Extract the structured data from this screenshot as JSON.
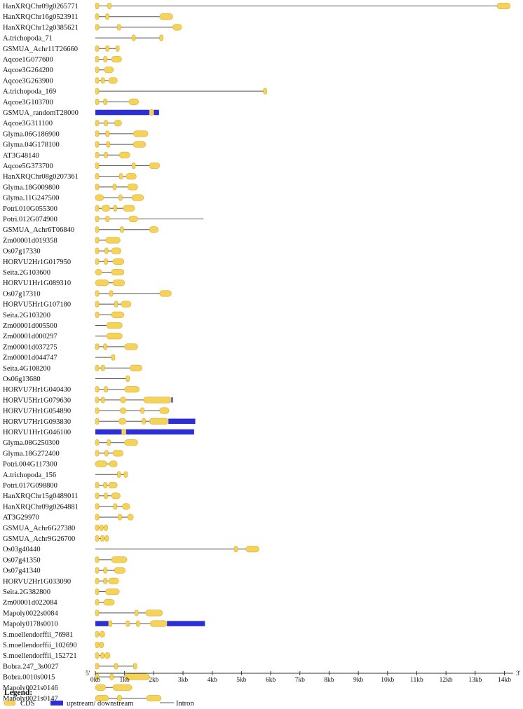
{
  "chart_data": {
    "type": "gene-structure",
    "x_unit": "kb",
    "xlim": [
      0,
      14.3
    ],
    "end_labels": {
      "left": "5'",
      "right": "3'"
    },
    "ticks": [
      "0kb",
      "1kb",
      "2kb",
      "3kb",
      "4kb",
      "5kb",
      "6kb",
      "7kb",
      "8kb",
      "9kb",
      "10kb",
      "11kb",
      "12kb",
      "13kb",
      "14kb"
    ],
    "tick_values": [
      0,
      1,
      2,
      3,
      4,
      5,
      6,
      7,
      8,
      9,
      10,
      11,
      12,
      13,
      14
    ],
    "colors": {
      "cds": "#f5d35a",
      "cds_edge": "#d9ae2e",
      "utr": "#2e2ed6",
      "intron": "#555555"
    },
    "legend": {
      "title": "Legend:",
      "items": [
        {
          "key": "cds",
          "label": "CDS"
        },
        {
          "key": "utr",
          "label": "upstream/ downstream"
        },
        {
          "key": "intron",
          "label": "Intron"
        }
      ]
    },
    "genes": [
      {
        "name": "HanXRQChr09g0265771",
        "length": 14.2,
        "cds": [
          [
            0,
            0.12
          ],
          [
            0.42,
            0.5
          ],
          [
            13.75,
            14.2
          ]
        ],
        "utr": []
      },
      {
        "name": "HanXRQChr16g0523911",
        "length": 2.65,
        "cds": [
          [
            0,
            0.12
          ],
          [
            0.35,
            0.43
          ],
          [
            2.2,
            2.65
          ]
        ],
        "utr": []
      },
      {
        "name": "HanXRQChr12g0385621",
        "length": 2.95,
        "cds": [
          [
            0,
            0.1
          ],
          [
            0.75,
            0.85
          ],
          [
            2.65,
            2.95
          ]
        ],
        "utr": []
      },
      {
        "name": "A.trichopoda_71",
        "length": 2.3,
        "cds": [
          [
            1.25,
            1.35
          ],
          [
            2.2,
            2.3
          ]
        ],
        "utr": []
      },
      {
        "name": "GSMUA_Achr11T26660",
        "length": 0.8,
        "cds": [
          [
            0,
            0.1
          ],
          [
            0.35,
            0.42
          ],
          [
            0.7,
            0.8
          ]
        ],
        "utr": []
      },
      {
        "name": "Aqcoe1G077600",
        "length": 0.9,
        "cds": [
          [
            0,
            0.12
          ],
          [
            0.28,
            0.38
          ],
          [
            0.55,
            0.9
          ]
        ],
        "utr": []
      },
      {
        "name": "Aqcoe3G264200",
        "length": 0.62,
        "cds": [
          [
            0,
            0.08
          ],
          [
            0.3,
            0.62
          ]
        ],
        "utr": []
      },
      {
        "name": "Aqcoe3G263900",
        "length": 0.75,
        "cds": [
          [
            0,
            0.12
          ],
          [
            0.2,
            0.3
          ],
          [
            0.45,
            0.75
          ]
        ],
        "utr": []
      },
      {
        "name": "A.trichopoda_169",
        "length": 5.85,
        "cds": [
          [
            0,
            0.05
          ],
          [
            5.75,
            5.85
          ]
        ],
        "utr": []
      },
      {
        "name": "Aqcoe3G103700",
        "length": 1.48,
        "cds": [
          [
            0,
            0.1
          ],
          [
            0.28,
            0.38
          ],
          [
            1.15,
            1.48
          ]
        ],
        "utr": []
      },
      {
        "name": "GSMUA_randomT28000",
        "length": 2.18,
        "cds": [
          [
            1.85,
            2.0
          ]
        ],
        "utr": [
          [
            0,
            1.85
          ],
          [
            2.0,
            2.18
          ]
        ]
      },
      {
        "name": "Aqcoe3G311100",
        "length": 0.9,
        "cds": [
          [
            0,
            0.1
          ],
          [
            0.3,
            0.4
          ],
          [
            0.65,
            0.9
          ]
        ],
        "utr": []
      },
      {
        "name": "Glyma.06G186900",
        "length": 1.8,
        "cds": [
          [
            0,
            0.12
          ],
          [
            0.35,
            0.48
          ],
          [
            1.3,
            1.8
          ]
        ],
        "utr": []
      },
      {
        "name": "Glyma.04G178100",
        "length": 1.72,
        "cds": [
          [
            0,
            0.12
          ],
          [
            0.38,
            0.5
          ],
          [
            1.3,
            1.72
          ]
        ],
        "utr": []
      },
      {
        "name": "AT3G48140",
        "length": 1.18,
        "cds": [
          [
            0,
            0.1
          ],
          [
            0.3,
            0.42
          ],
          [
            0.82,
            1.18
          ]
        ],
        "utr": []
      },
      {
        "name": "Aqcoe5G373700",
        "length": 2.2,
        "cds": [
          [
            0,
            0.12
          ],
          [
            1.25,
            1.35
          ],
          [
            1.85,
            2.2
          ]
        ],
        "utr": []
      },
      {
        "name": "HanXRQChr08g0207361",
        "length": 1.4,
        "cds": [
          [
            0,
            0.1
          ],
          [
            0.82,
            0.92
          ],
          [
            1.05,
            1.4
          ]
        ],
        "utr": []
      },
      {
        "name": "Glyma.18G009800",
        "length": 1.45,
        "cds": [
          [
            0,
            0.12
          ],
          [
            0.6,
            0.7
          ],
          [
            1.1,
            1.45
          ]
        ],
        "utr": []
      },
      {
        "name": "Glyma.11G247500",
        "length": 1.65,
        "cds": [
          [
            0,
            0.28
          ],
          [
            0.8,
            0.9
          ],
          [
            1.25,
            1.65
          ]
        ],
        "utr": []
      },
      {
        "name": "Potri.010G055300",
        "length": 1.35,
        "cds": [
          [
            0,
            0.12
          ],
          [
            0.22,
            0.5
          ],
          [
            0.62,
            0.72
          ],
          [
            0.95,
            1.35
          ]
        ],
        "utr": []
      },
      {
        "name": "Potri.012G074900",
        "length": 3.7,
        "cds": [
          [
            0,
            0.12
          ],
          [
            0.35,
            0.48
          ],
          [
            1.15,
            1.45
          ]
        ],
        "utr": []
      },
      {
        "name": "GSMUA_Achr6T06840",
        "length": 2.15,
        "cds": [
          [
            0,
            0.12
          ],
          [
            0.85,
            0.92
          ],
          [
            1.85,
            2.15
          ]
        ],
        "utr": []
      },
      {
        "name": "Zm00001d019358",
        "length": 0.85,
        "cds": [
          [
            0,
            0.12
          ],
          [
            0.35,
            0.85
          ]
        ],
        "utr": []
      },
      {
        "name": "Os07g17330",
        "length": 0.88,
        "cds": [
          [
            0,
            0.12
          ],
          [
            0.32,
            0.42
          ],
          [
            0.55,
            0.88
          ]
        ],
        "utr": []
      },
      {
        "name": "HORVU2Hr1G017950",
        "length": 0.98,
        "cds": [
          [
            0,
            0.1
          ],
          [
            0.3,
            0.4
          ],
          [
            0.6,
            0.98
          ]
        ],
        "utr": []
      },
      {
        "name": "Seita.2G103600",
        "length": 0.98,
        "cds": [
          [
            0,
            0.22
          ],
          [
            0.55,
            0.98
          ]
        ],
        "utr": []
      },
      {
        "name": "HORVU1Hr1G089310",
        "length": 1.0,
        "cds": [
          [
            0,
            0.45
          ],
          [
            0.6,
            1.0
          ]
        ],
        "utr": []
      },
      {
        "name": "Os07g17310",
        "length": 2.6,
        "cds": [
          [
            0,
            0.05
          ],
          [
            0.48,
            0.55
          ],
          [
            2.2,
            2.6
          ]
        ],
        "utr": []
      },
      {
        "name": "HORVU5Hr1G107180",
        "length": 1.22,
        "cds": [
          [
            0,
            0.08
          ],
          [
            0.65,
            0.75
          ],
          [
            0.88,
            1.22
          ]
        ],
        "utr": []
      },
      {
        "name": "Seita.2G103200",
        "length": 0.98,
        "cds": [
          [
            0,
            0.12
          ],
          [
            0.55,
            0.98
          ]
        ],
        "utr": []
      },
      {
        "name": "Zm00001d005500",
        "length": 0.92,
        "cds": [
          [
            0.38,
            0.92
          ]
        ],
        "utr": []
      },
      {
        "name": "Zm00001d000297",
        "length": 0.92,
        "cds": [
          [
            0.38,
            0.92
          ]
        ],
        "utr": []
      },
      {
        "name": "Zm00001d037275",
        "length": 1.45,
        "cds": [
          [
            0,
            0.12
          ],
          [
            0.28,
            0.38
          ],
          [
            1.0,
            1.45
          ]
        ],
        "utr": []
      },
      {
        "name": "Zm00001d044747",
        "length": 0.65,
        "cds": [
          [
            0.55,
            0.65
          ]
        ],
        "utr": []
      },
      {
        "name": "Seita.4G108200",
        "length": 1.6,
        "cds": [
          [
            0,
            0.12
          ],
          [
            0.2,
            0.3
          ],
          [
            1.18,
            1.6
          ]
        ],
        "utr": []
      },
      {
        "name": "Os06g13680",
        "length": 1.15,
        "cds": [
          [
            1.05,
            1.15
          ]
        ],
        "utr": []
      },
      {
        "name": "HORVU7Hr1G040430",
        "length": 1.5,
        "cds": [
          [
            0,
            0.12
          ],
          [
            0.3,
            0.38
          ],
          [
            1.0,
            1.5
          ]
        ],
        "utr": []
      },
      {
        "name": "HORVU5Hr1G079630",
        "length": 2.65,
        "cds": [
          [
            0,
            0.12
          ],
          [
            0.2,
            0.3
          ],
          [
            0.85,
            1.05
          ],
          [
            1.65,
            2.6
          ]
        ],
        "utr": [
          [
            2.6,
            2.65
          ]
        ]
      },
      {
        "name": "HORVU7Hr1G054890",
        "length": 2.52,
        "cds": [
          [
            0,
            0.12
          ],
          [
            0.85,
            1.05
          ],
          [
            1.55,
            1.62
          ],
          [
            2.2,
            2.52
          ]
        ],
        "utr": []
      },
      {
        "name": "HORVU7Hr1G093830",
        "length": 3.42,
        "cds": [
          [
            0,
            0.12
          ],
          [
            0.8,
            1.05
          ],
          [
            1.6,
            1.68
          ],
          [
            2.5,
            2.5
          ]
        ],
        "cds_extra": [
          [
            1.85,
            2.5
          ]
        ],
        "utr": [
          [
            2.5,
            3.42
          ]
        ]
      },
      {
        "name": "HORVU1Hr1G046100",
        "length": 3.38,
        "cds": [
          [
            0.9,
            1.05
          ]
        ],
        "utr": [
          [
            0,
            0.9
          ],
          [
            1.05,
            3.38
          ]
        ]
      },
      {
        "name": "Glyma.08G250300",
        "length": 1.45,
        "cds": [
          [
            0,
            0.12
          ],
          [
            0.4,
            0.5
          ],
          [
            1.0,
            1.45
          ]
        ],
        "utr": []
      },
      {
        "name": "Glyma.18G272400",
        "length": 0.95,
        "cds": [
          [
            0,
            0.12
          ],
          [
            0.32,
            0.42
          ],
          [
            0.6,
            0.95
          ]
        ],
        "utr": []
      },
      {
        "name": "Potri.004G117300",
        "length": 0.75,
        "cds": [
          [
            0,
            0.4
          ],
          [
            0.48,
            0.75
          ]
        ],
        "utr": []
      },
      {
        "name": "A.trichopoda_156",
        "length": 1.08,
        "cds": [
          [
            0.75,
            0.82
          ],
          [
            0.98,
            1.08
          ]
        ],
        "utr": []
      },
      {
        "name": "Potri.017G098800",
        "length": 0.75,
        "cds": [
          [
            0,
            0.12
          ],
          [
            0.28,
            0.38
          ],
          [
            0.45,
            0.75
          ]
        ],
        "utr": []
      },
      {
        "name": "HanXRQChr15g0489011",
        "length": 0.85,
        "cds": [
          [
            0,
            0.12
          ],
          [
            0.3,
            0.38
          ],
          [
            0.55,
            0.85
          ]
        ],
        "utr": []
      },
      {
        "name": "HanXRQChr09g0264881",
        "length": 1.18,
        "cds": [
          [
            0,
            0.12
          ],
          [
            0.62,
            0.72
          ],
          [
            0.92,
            1.18
          ]
        ],
        "utr": []
      },
      {
        "name": "AT3G29970",
        "length": 1.3,
        "cds": [
          [
            0,
            0.1
          ],
          [
            0.78,
            0.88
          ],
          [
            1.1,
            1.3
          ]
        ],
        "utr": []
      },
      {
        "name": "GSMUA_Achr6G27380",
        "length": 0.42,
        "cds": [
          [
            0,
            0.08
          ],
          [
            0.15,
            0.22
          ],
          [
            0.3,
            0.42
          ]
        ],
        "utr": []
      },
      {
        "name": "GSMUA_Achr9G26700",
        "length": 0.45,
        "cds": [
          [
            0,
            0.08
          ],
          [
            0.18,
            0.25
          ],
          [
            0.33,
            0.45
          ]
        ],
        "utr": []
      },
      {
        "name": "Os03g40440",
        "length": 5.6,
        "cds": [
          [
            4.75,
            4.85
          ],
          [
            5.15,
            5.6
          ]
        ],
        "utr": []
      },
      {
        "name": "Os07g41350",
        "length": 1.08,
        "cds": [
          [
            0,
            0.12
          ],
          [
            0.55,
            1.08
          ]
        ],
        "utr": []
      },
      {
        "name": "Os07g41340",
        "length": 1.02,
        "cds": [
          [
            0,
            0.12
          ],
          [
            0.28,
            0.38
          ],
          [
            0.65,
            1.02
          ]
        ],
        "utr": []
      },
      {
        "name": "HORVU2Hr1G033090",
        "length": 0.8,
        "cds": [
          [
            0,
            0.12
          ],
          [
            0.28,
            0.38
          ],
          [
            0.45,
            0.8
          ]
        ],
        "utr": []
      },
      {
        "name": "Seita.2G382800",
        "length": 0.82,
        "cds": [
          [
            0,
            0.12
          ],
          [
            0.35,
            0.82
          ]
        ],
        "utr": []
      },
      {
        "name": "Zm00001d022084",
        "length": 0.65,
        "cds": [
          [
            0,
            0.12
          ],
          [
            0.28,
            0.65
          ]
        ],
        "utr": []
      },
      {
        "name": "Mapoly0022s0084",
        "length": 2.3,
        "cds": [
          [
            0,
            0.05
          ],
          [
            1.35,
            1.45
          ],
          [
            1.72,
            2.3
          ]
        ],
        "utr": []
      },
      {
        "name": "Mapoly0178s0010",
        "length": 3.75,
        "cds": [
          [
            0.45,
            0.55
          ],
          [
            1.05,
            1.12
          ],
          [
            1.4,
            1.48
          ],
          [
            1.88,
            2.45
          ]
        ],
        "utr": [
          [
            0,
            0.45
          ],
          [
            2.45,
            3.75
          ]
        ]
      },
      {
        "name": "S.moellendorffii_76981",
        "length": 0.32,
        "cds": [
          [
            0,
            0.08
          ],
          [
            0.15,
            0.32
          ]
        ],
        "utr": []
      },
      {
        "name": "S.moellendorffii_102690",
        "length": 0.28,
        "cds": [
          [
            0,
            0.08
          ],
          [
            0.14,
            0.28
          ]
        ],
        "utr": []
      },
      {
        "name": "S.moellendorffii_152721",
        "length": 0.5,
        "cds": [
          [
            0,
            0.08
          ],
          [
            0.18,
            0.25
          ],
          [
            0.32,
            0.5
          ]
        ],
        "utr": []
      },
      {
        "name": "Bobra.247_3s0027",
        "length": 1.35,
        "cds": [
          [
            0,
            0.12
          ],
          [
            0.65,
            0.75
          ],
          [
            1.3,
            1.35
          ]
        ],
        "utr": []
      },
      {
        "name": "Bobra.0010s0015",
        "length": 1.85,
        "cds": [
          [
            0,
            0.12
          ],
          [
            0.5,
            0.6
          ],
          [
            1.0,
            1.85
          ]
        ],
        "utr": []
      },
      {
        "name": "Mapoly0021s0146",
        "length": 1.25,
        "cds": [
          [
            0,
            0.35
          ],
          [
            0.6,
            1.25
          ]
        ],
        "utr": []
      },
      {
        "name": "Mapoly0021s0147",
        "length": 2.25,
        "cds": [
          [
            0,
            0.45
          ],
          [
            0.75,
            0.9
          ],
          [
            1.75,
            2.25
          ]
        ],
        "utr": []
      }
    ]
  }
}
